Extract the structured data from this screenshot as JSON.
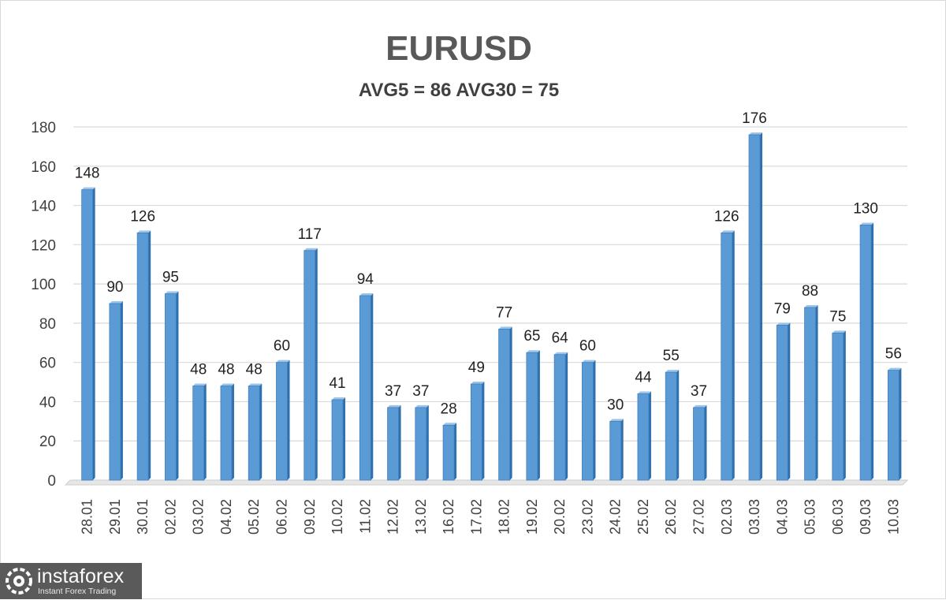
{
  "chart_data": {
    "type": "bar",
    "title": "EURUSD",
    "subtitle": "AVG5 = 86 AVG30 = 75",
    "categories": [
      "28.01",
      "29.01",
      "30.01",
      "02.02",
      "03.02",
      "04.02",
      "05.02",
      "06.02",
      "09.02",
      "10.02",
      "11.02",
      "12.02",
      "13.02",
      "16.02",
      "17.02",
      "18.02",
      "19.02",
      "20.02",
      "23.02",
      "24.02",
      "25.02",
      "26.02",
      "27.02",
      "02.03",
      "03.03",
      "04.03",
      "05.03",
      "06.03",
      "09.03",
      "10.03"
    ],
    "values": [
      148,
      90,
      126,
      95,
      48,
      48,
      48,
      60,
      117,
      41,
      94,
      37,
      37,
      28,
      49,
      77,
      65,
      64,
      60,
      30,
      44,
      55,
      37,
      126,
      176,
      79,
      88,
      75,
      130,
      56
    ],
    "ylim": [
      0,
      180
    ],
    "yticks": [
      0,
      20,
      40,
      60,
      80,
      100,
      120,
      140,
      160,
      180
    ],
    "grid": true,
    "data_labels": true,
    "bar_color": "#5b9bd5",
    "bar_side_color": "#2e6fad",
    "bar_top_color": "#9cc3e8"
  },
  "watermark": {
    "name": "instaforex",
    "tagline": "Instant Forex Trading"
  }
}
